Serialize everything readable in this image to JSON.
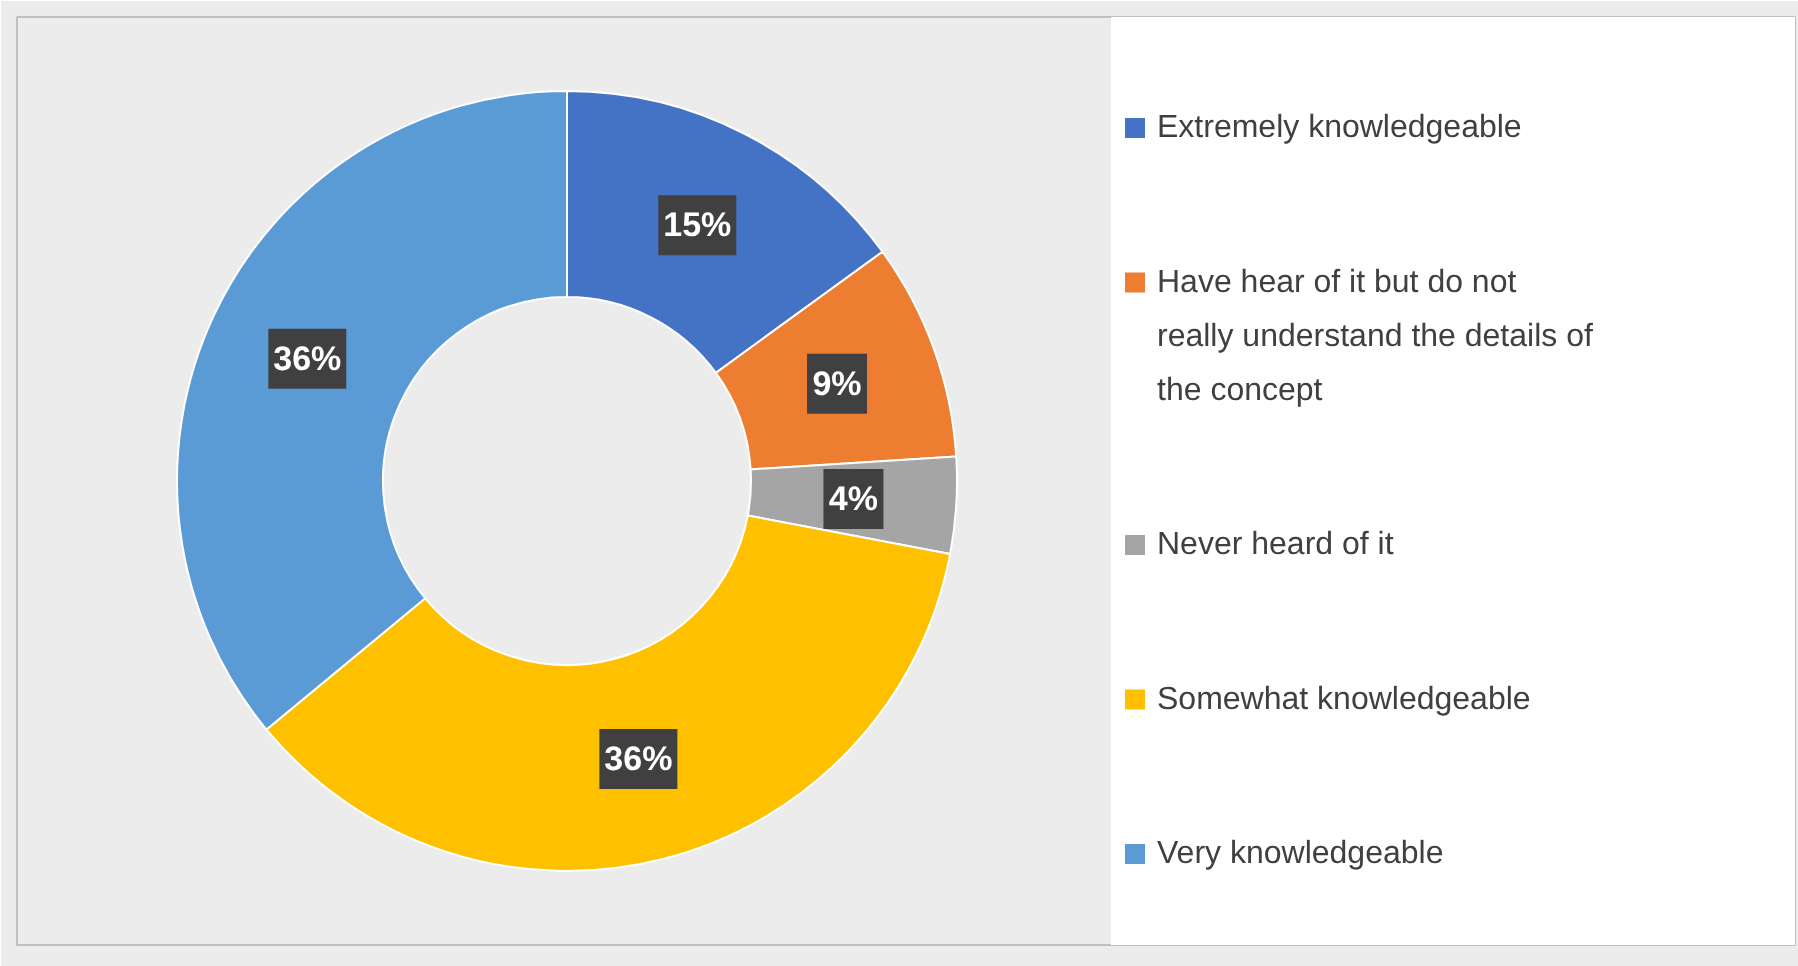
{
  "chart_data": {
    "type": "donut",
    "categories": [
      "Extremely knowledgeable",
      "Have hear of it but do not really understand the details of the concept",
      "Never heard of it",
      "Somewhat knowledgeable",
      "Very knowledgeable"
    ],
    "values": [
      15,
      9,
      4,
      36,
      36
    ],
    "colors": [
      "#4472c4",
      "#ed7d31",
      "#a5a5a5",
      "#ffc000",
      "#5b9bd5"
    ],
    "value_labels": [
      "15%",
      "9%",
      "4%",
      "36%",
      "36%"
    ],
    "legend": "right"
  }
}
